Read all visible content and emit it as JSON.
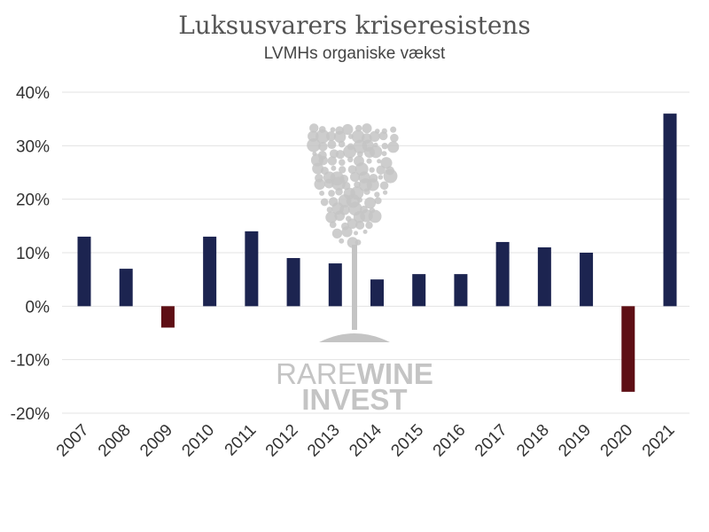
{
  "chart_data": {
    "type": "bar",
    "title": "Luksusvarers kriseresistens",
    "subtitle": "LVMHs organiske vækst",
    "categories": [
      "2007",
      "2008",
      "2009",
      "2010",
      "2011",
      "2012",
      "2013",
      "2014",
      "2015",
      "2016",
      "2017",
      "2018",
      "2019",
      "2020",
      "2021"
    ],
    "values": [
      13,
      7,
      -4,
      13,
      14,
      9,
      8,
      5,
      6,
      6,
      12,
      11,
      10,
      -16,
      36
    ],
    "ylim": [
      -20,
      40
    ],
    "yticks": [
      -20,
      -10,
      0,
      10,
      20,
      30,
      40
    ],
    "ytick_labels": [
      "-20%",
      "-10%",
      "0%",
      "10%",
      "20%",
      "30%",
      "40%"
    ],
    "grid": true,
    "positive_color": "#1c2450",
    "negative_color": "#5e0f15"
  },
  "watermark": {
    "line1_light": "RARE",
    "line1_bold": "WINE",
    "line2": "INVEST",
    "color": "#c4c4c4",
    "icon": "wine-glass-icon"
  }
}
